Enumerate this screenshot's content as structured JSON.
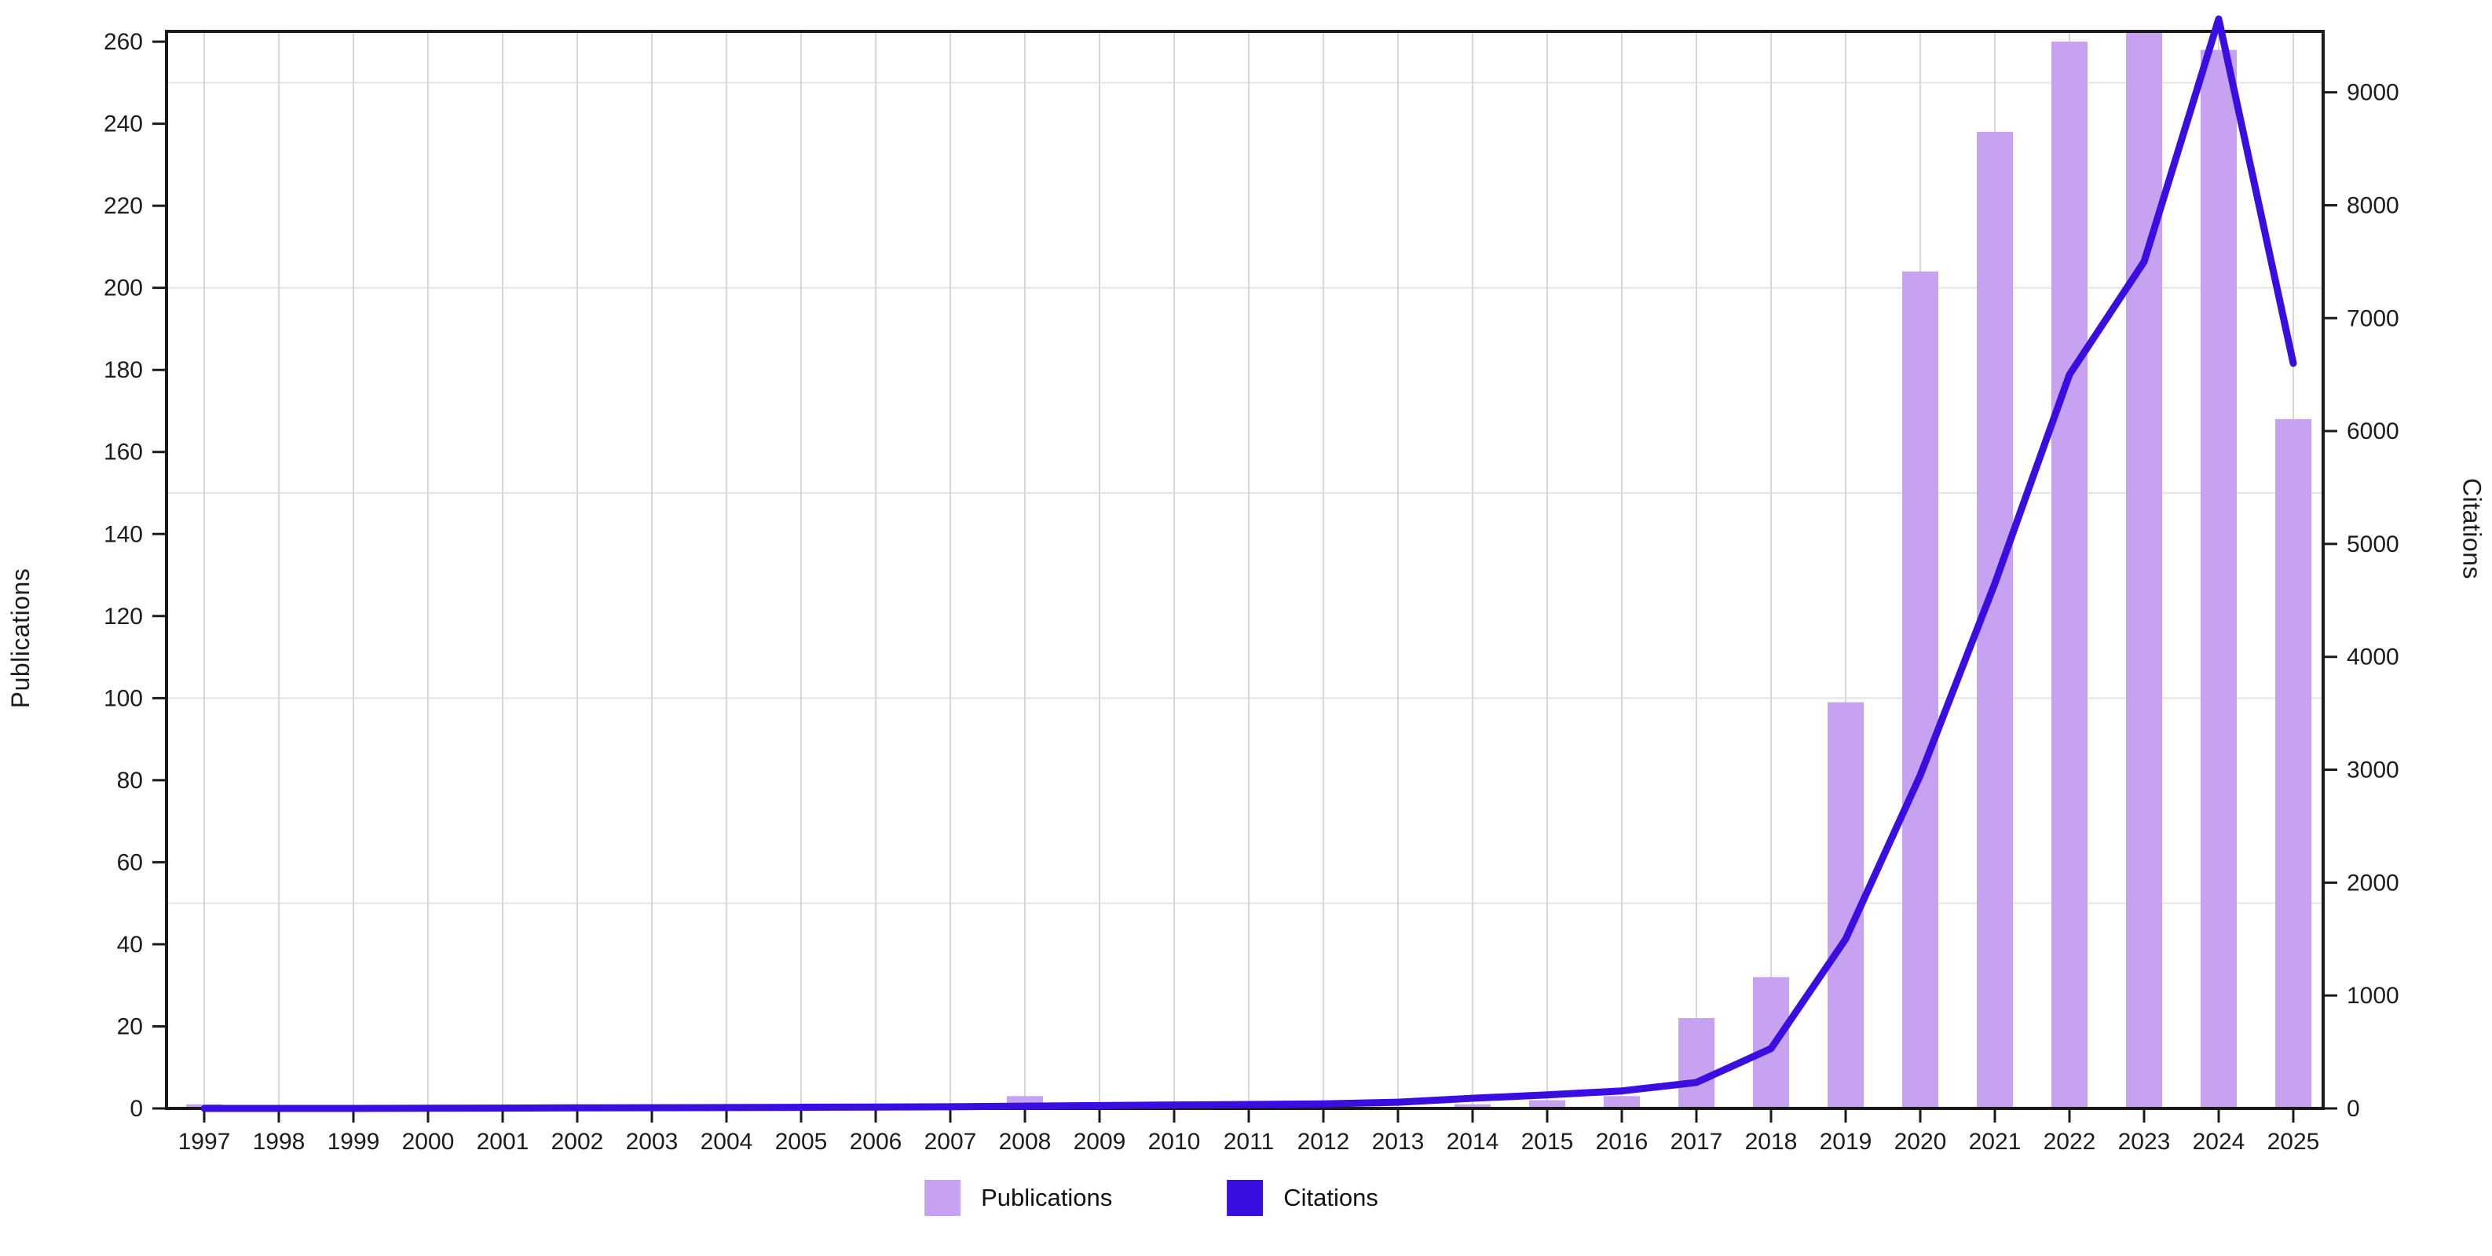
{
  "chart_data": {
    "type": "bar+line dual-axis",
    "title": "",
    "categories": [
      "1997",
      "1998",
      "1999",
      "2000",
      "2001",
      "2002",
      "2003",
      "2004",
      "2005",
      "2006",
      "2007",
      "2008",
      "2009",
      "2010",
      "2011",
      "2012",
      "2013",
      "2014",
      "2015",
      "2016",
      "2017",
      "2018",
      "2019",
      "2020",
      "2021",
      "2022",
      "2023",
      "2024",
      "2025"
    ],
    "series": [
      {
        "name": "Publications",
        "type": "bar",
        "axis": "left",
        "color": "#c6a2f0",
        "values": [
          1,
          0,
          0,
          0,
          0,
          0,
          0,
          0,
          0,
          0,
          0,
          3,
          0,
          0,
          1,
          1,
          0,
          1,
          2,
          3,
          22,
          32,
          99,
          204,
          238,
          260,
          265,
          258,
          168
        ]
      },
      {
        "name": "Citations",
        "type": "line",
        "axis": "right",
        "color": "#3a0de0",
        "values": [
          0,
          0,
          0,
          2,
          3,
          5,
          6,
          8,
          10,
          12,
          15,
          20,
          25,
          30,
          35,
          40,
          55,
          90,
          120,
          155,
          230,
          530,
          1500,
          2950,
          4650,
          6500,
          7500,
          9650,
          6600
        ]
      }
    ],
    "left_axis": {
      "label": "Publications",
      "ticks": [
        0,
        20,
        40,
        60,
        80,
        100,
        120,
        140,
        160,
        180,
        200,
        220,
        240,
        260
      ],
      "max": 262.5,
      "grid_step": 50
    },
    "right_axis": {
      "label": "Citations",
      "ticks": [
        0,
        1000,
        2000,
        3000,
        4000,
        5000,
        6000,
        7000,
        8000,
        9000
      ],
      "max": 9540
    },
    "legend": {
      "position": "bottom-center",
      "items": [
        {
          "label": "Publications",
          "color": "#c6a2f0"
        },
        {
          "label": "Citations",
          "color": "#3a0de0"
        }
      ]
    },
    "grid": {
      "vertical_per_year": true,
      "horizontal_left_step": 50,
      "vertical_color": "#d7d7d7",
      "horizontal_color": "#e4e4e4"
    },
    "frame_color": "#1a1a1a"
  }
}
